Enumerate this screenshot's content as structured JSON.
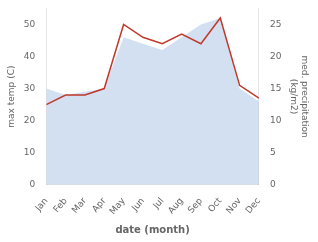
{
  "chart_data": {
    "type": "line",
    "categories": [
      "Jan",
      "Feb",
      "Mar",
      "Apr",
      "May",
      "Jun",
      "Jul",
      "Aug",
      "Sep",
      "Oct",
      "Nov",
      "Dec"
    ],
    "xlabel": "date (month)",
    "ylabel": "max temp (C)",
    "y2label": "med. precipitation\n(kg/m2)",
    "series": [
      {
        "type": "line",
        "color": "#c0392b",
        "values": [
          25,
          28,
          28,
          30,
          50,
          46,
          44,
          47,
          44,
          52,
          31,
          27
        ]
      },
      {
        "type": "area",
        "axis": "y2",
        "color": "#aec6e8",
        "values": [
          15,
          14,
          14.5,
          15,
          23,
          22,
          21,
          23,
          25,
          26,
          15,
          13
        ]
      }
    ],
    "ylim": [
      0,
      55
    ],
    "yticks": [
      0,
      10,
      20,
      30,
      40,
      50
    ],
    "y2lim": [
      0,
      27.5
    ],
    "y2ticks": [
      0,
      5,
      10,
      15,
      20,
      25
    ],
    "grid": false
  }
}
